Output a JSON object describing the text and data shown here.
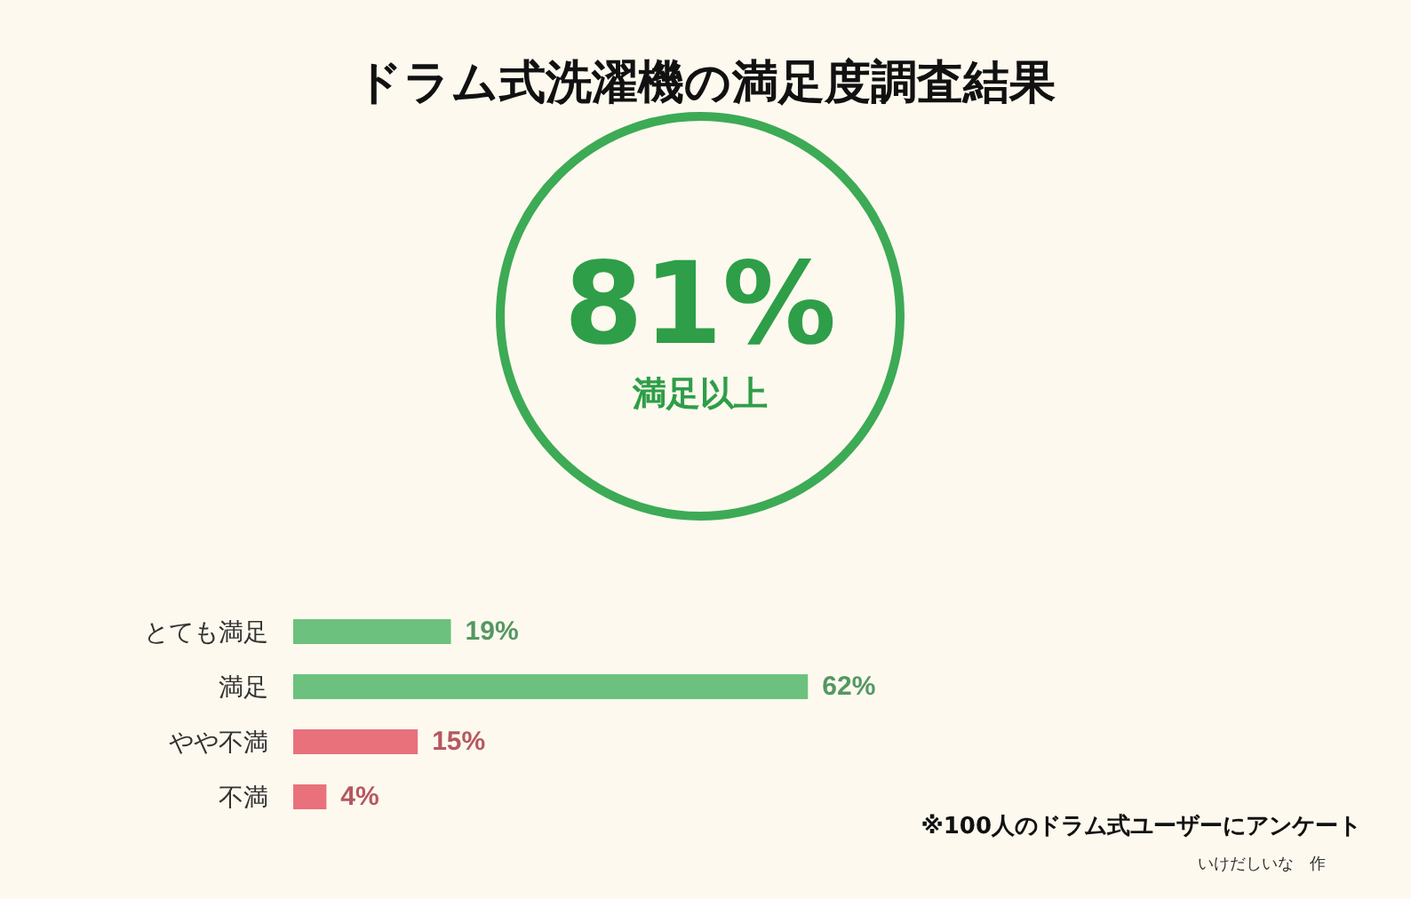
{
  "chart_data": {
    "type": "bar",
    "orientation": "horizontal",
    "title": "ドラム式洗濯機の満足度調査結果",
    "categories": [
      "とても満足",
      "満足",
      "やや不満",
      "不満"
    ],
    "values": [
      19,
      62,
      15,
      4
    ],
    "colors": [
      "#6cc17e",
      "#6cc17e",
      "#e8717c",
      "#e8717c"
    ],
    "value_labels": [
      "19%",
      "62%",
      "15%",
      "4%"
    ],
    "annotations": [
      "81%",
      "満足以上",
      "※100人のドラム式ユーザーにアンケート",
      "いけだしいな　作"
    ]
  }
}
